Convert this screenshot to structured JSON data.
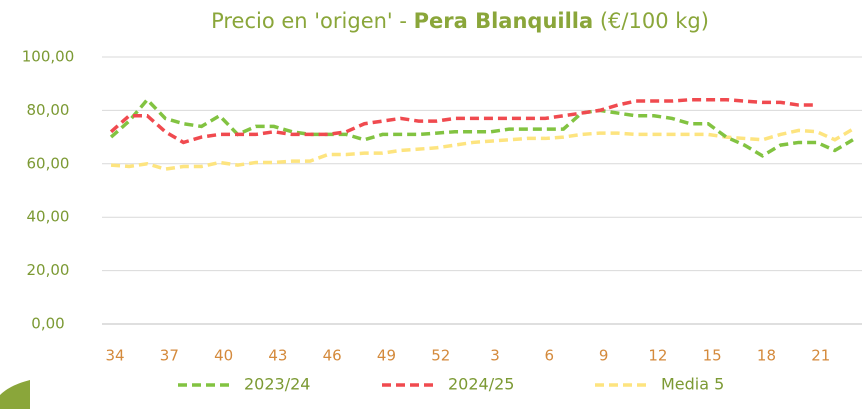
{
  "chart_data": {
    "type": "line",
    "title_prefix": "Precio en 'origen' - ",
    "title_emphasis": "Pera Blanquilla",
    "title_suffix": " (€/100 kg)",
    "categories": [
      34,
      null,
      null,
      37,
      null,
      null,
      40,
      null,
      null,
      43,
      null,
      null,
      46,
      null,
      null,
      49,
      null,
      null,
      52,
      null,
      null,
      3,
      null,
      null,
      6,
      null,
      null,
      9,
      null,
      null,
      12,
      null,
      null,
      15,
      null,
      null,
      18,
      null,
      null,
      21,
      null,
      null
    ],
    "series": [
      {
        "name": "2023/24",
        "color": "#82c341",
        "values": [
          70,
          76,
          84,
          77,
          75,
          74,
          78,
          71,
          74,
          74,
          72,
          71,
          71,
          71,
          69,
          71,
          71,
          71,
          71.5,
          72,
          72,
          72,
          73,
          73,
          73,
          73,
          79,
          80,
          79,
          78,
          78,
          77,
          75,
          75,
          70,
          67,
          63,
          67,
          68,
          68,
          65,
          69
        ]
      },
      {
        "name": "2024/25",
        "color": "#f04a4f",
        "values": [
          72,
          78,
          78,
          72,
          68,
          70,
          71,
          71,
          71,
          72,
          71,
          71,
          71,
          72,
          75,
          76,
          77,
          76,
          76,
          77,
          77,
          77,
          77,
          77,
          77,
          78,
          79,
          80,
          82,
          83.5,
          83.5,
          83.5,
          84,
          84,
          84,
          83.5,
          83,
          83,
          82,
          82,
          null,
          null
        ]
      },
      {
        "name": "Media 5",
        "color": "#fde47f",
        "values": [
          59.5,
          59,
          60,
          58,
          59,
          59,
          60.5,
          59.5,
          60.5,
          60.5,
          61,
          61,
          63.5,
          63.5,
          64,
          64,
          65,
          65.5,
          66,
          67,
          68,
          68.5,
          69,
          69.5,
          69.5,
          70,
          71,
          71.5,
          71.5,
          71,
          71,
          71,
          71,
          71,
          70,
          69.5,
          69,
          71,
          72.5,
          72,
          69,
          73
        ]
      }
    ],
    "ylim": [
      0,
      100
    ],
    "yticks": [
      {
        "value": 0,
        "label": "0,00"
      },
      {
        "value": 20,
        "label": "20,00"
      },
      {
        "value": 40,
        "label": "40,00"
      },
      {
        "value": 60,
        "label": "60,00"
      },
      {
        "value": 80,
        "label": "80,00"
      },
      {
        "value": 100,
        "label": "100,00"
      }
    ],
    "grid": true,
    "legend": "bottom"
  }
}
